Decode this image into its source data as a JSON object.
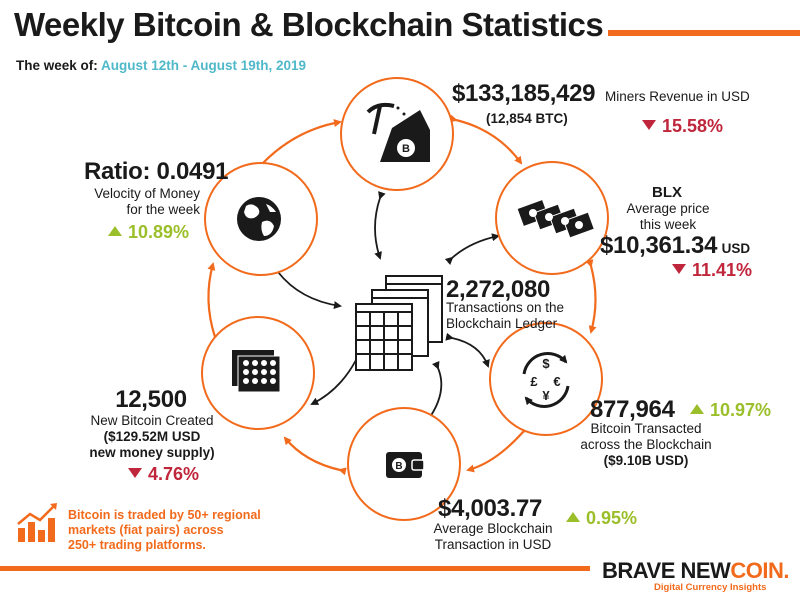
{
  "title": "Weekly Bitcoin & Blockchain Statistics",
  "week_label": "The week of:",
  "week_range": "August 12th - August 19th, 2019",
  "miners": {
    "value": "$133,185,429",
    "label": "Miners Revenue in USD",
    "btc": "(12,854 BTC)",
    "change": "15.58%",
    "direction": "down"
  },
  "price": {
    "brand": "BLX",
    "label1": "Average price",
    "label2": "this week",
    "value": "$10,361.34",
    "unit": "USD",
    "change": "11.41%",
    "direction": "down"
  },
  "transacted": {
    "value": "877,964",
    "label1": "Bitcoin Transacted",
    "label2": "across the Blockchain",
    "usd": "($9.10B USD)",
    "change": "10.97%",
    "direction": "up"
  },
  "avg_tx": {
    "value": "$4,003.77",
    "label1": "Average Blockchain",
    "label2": "Transaction in USD",
    "change": "0.95%",
    "direction": "up"
  },
  "new_btc": {
    "value": "12,500",
    "label": "New Bitcoin Created",
    "usd1": "($129.52M USD",
    "usd2": "new money supply)",
    "change": "4.76%",
    "direction": "down"
  },
  "velocity": {
    "value": "Ratio: 0.0491",
    "label1": "Velocity of Money",
    "label2": "for the week",
    "change": "10.89%",
    "direction": "up"
  },
  "transactions": {
    "value": "2,272,080",
    "label1": "Transactions on the",
    "label2": "Blockchain Ledger"
  },
  "note": {
    "line1": "Bitcoin is traded by 50+ regional",
    "line2": "markets (fiat pairs) across",
    "line3": "250+ trading platforms."
  },
  "brand": {
    "part1": "BRAVE NEW",
    "part2": "COIN.",
    "tagline": "Digital Currency Insights"
  },
  "colors": {
    "accent": "#f26a1b",
    "down": "#c0263b",
    "up": "#9bbf2a",
    "date": "#4fb8c9"
  },
  "icons": [
    "mining-icon",
    "banknotes-icon",
    "currency-exchange-icon",
    "wallet-icon",
    "coins-grid-icon",
    "globe-icon",
    "ledger-icon",
    "growth-chart-icon"
  ]
}
